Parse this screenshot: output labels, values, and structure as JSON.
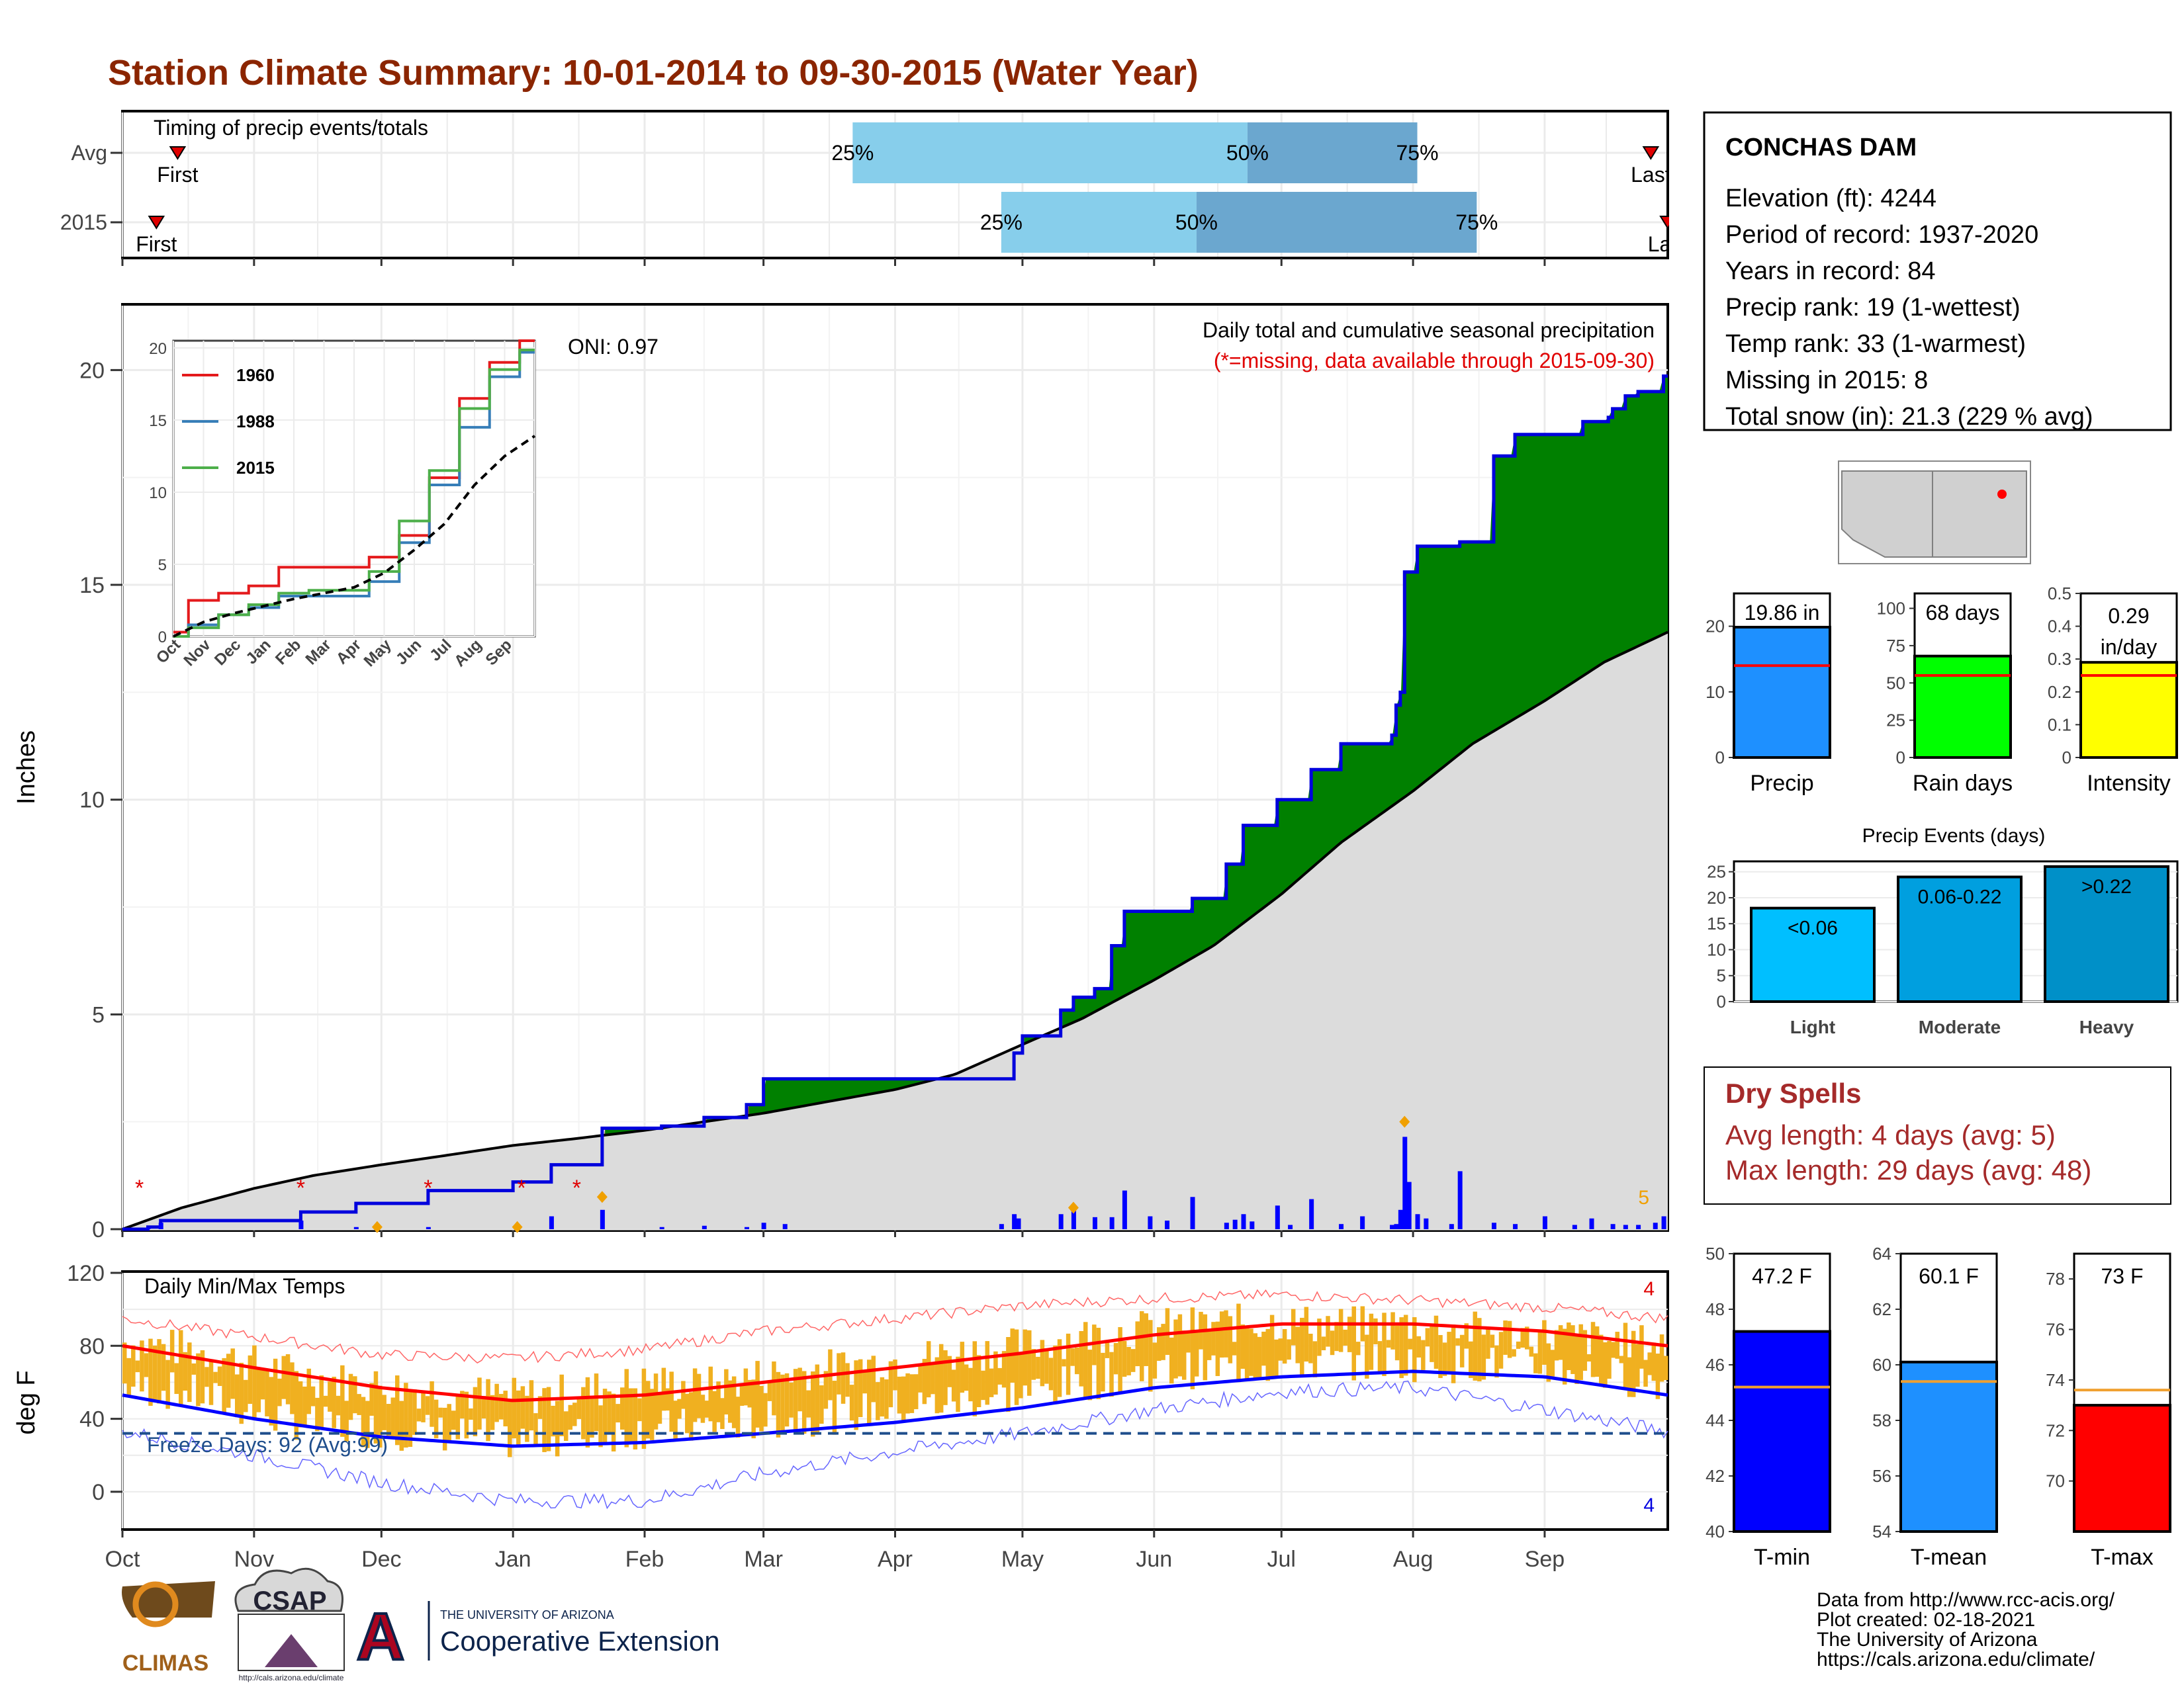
{
  "title": "Station Climate Summary: 10-01-2014 to 09-30-2015 (Water Year)",
  "colors": {
    "title": "#8b2500",
    "deficit": "#7f4f05",
    "surplus": "#008000",
    "avgFill": "#dcdcdc",
    "dailyBar": "#0000ff",
    "light": "#00bfff",
    "moderate": "#009fdf",
    "heavy": "#0090c8",
    "q1": "#87ceeb",
    "q2": "#6ba7cf",
    "tempBar": "#f0b020",
    "tmaxLine": "#ff0000",
    "tminLine": "#0000ff",
    "freeze": "#1f4e8c",
    "drySpells": "#a52a2a",
    "precipBar": "#1e90ff",
    "rainBar": "#00ff00",
    "intensityBar": "#ffff00",
    "tminBar": "#0000ff",
    "tmeanBar": "#1e90ff",
    "tmaxBar": "#ff0000",
    "avgLine": "#ff0000",
    "tempAvgLine": "#f0a030"
  },
  "timing": {
    "label": "Timing of precip events/totals",
    "rows": [
      {
        "name": "Avg",
        "first_label": "First",
        "last_label": "Last",
        "first": "2014-10-14",
        "last": "2015-09-26",
        "q25": "2015-03-22",
        "q50": "2015-06-23",
        "q75": "2015-08-02"
      },
      {
        "name": "2015",
        "first_label": "First",
        "last_label": "Last",
        "first": "2014-10-09",
        "last": "2015-09-30",
        "q25": "2015-04-26",
        "q50": "2015-06-11",
        "q75": "2015-08-16"
      }
    ],
    "pct_labels": [
      "25%",
      "50%",
      "75%"
    ]
  },
  "chart_data": [
    {
      "type": "area",
      "name": "cumulative_precip",
      "ylabel": "Inches",
      "ylim": [
        0,
        21.5
      ],
      "yticks": [
        0,
        5,
        10,
        15,
        20
      ],
      "xlim": [
        "2014-10-01",
        "2015-09-30"
      ],
      "x_ticks": [
        "Oct",
        "Nov",
        "Dec",
        "Jan",
        "Feb",
        "Mar",
        "Apr",
        "May",
        "Jun",
        "Jul",
        "Aug",
        "Sep"
      ],
      "annotation_title": "Daily total and cumulative seasonal precipitation",
      "annotation_missing": "(*=missing, data available through 2015-09-30)",
      "oni": "ONI: 0.97",
      "missing_count": "5",
      "avg_cumulative": {
        "dates": [
          "2014-10-01",
          "2014-10-15",
          "2014-11-01",
          "2014-11-15",
          "2014-12-01",
          "2014-12-15",
          "2015-01-01",
          "2015-01-15",
          "2015-02-01",
          "2015-02-15",
          "2015-03-01",
          "2015-03-15",
          "2015-04-01",
          "2015-04-15",
          "2015-05-01",
          "2015-05-15",
          "2015-06-01",
          "2015-06-15",
          "2015-07-01",
          "2015-07-15",
          "2015-08-01",
          "2015-08-15",
          "2015-09-01",
          "2015-09-15",
          "2015-09-30"
        ],
        "values": [
          0.0,
          0.5,
          0.95,
          1.25,
          1.5,
          1.7,
          1.95,
          2.1,
          2.3,
          2.5,
          2.7,
          2.95,
          3.25,
          3.6,
          4.3,
          4.9,
          5.8,
          6.6,
          7.8,
          9.0,
          10.2,
          11.3,
          12.3,
          13.2,
          13.9
        ]
      },
      "cumulative_2015": {
        "dates": [
          "2014-10-01",
          "2014-10-07",
          "2014-10-10",
          "2014-11-01",
          "2014-11-12",
          "2014-11-25",
          "2014-12-12",
          "2015-01-01",
          "2015-01-10",
          "2015-01-20",
          "2015-01-22",
          "2015-02-05",
          "2015-02-15",
          "2015-02-25",
          "2015-03-01",
          "2015-03-15",
          "2015-04-01",
          "2015-04-15",
          "2015-04-29",
          "2015-05-01",
          "2015-05-10",
          "2015-05-13",
          "2015-05-18",
          "2015-05-22",
          "2015-05-25",
          "2015-06-04",
          "2015-06-10",
          "2015-06-18",
          "2015-06-22",
          "2015-06-30",
          "2015-07-03",
          "2015-07-06",
          "2015-07-08",
          "2015-07-15",
          "2015-07-27",
          "2015-07-28",
          "2015-07-29",
          "2015-07-30",
          "2015-08-02",
          "2015-08-10",
          "2015-08-12",
          "2015-08-20",
          "2015-08-25",
          "2015-09-01",
          "2015-09-10",
          "2015-09-16",
          "2015-09-17",
          "2015-09-20",
          "2015-09-23",
          "2015-09-29",
          "2015-09-30"
        ],
        "values": [
          0.0,
          0.05,
          0.2,
          0.2,
          0.4,
          0.6,
          0.9,
          1.1,
          1.5,
          1.5,
          2.35,
          2.4,
          2.6,
          2.9,
          3.5,
          3.5,
          3.5,
          3.5,
          4.1,
          4.5,
          5.1,
          5.4,
          5.6,
          6.6,
          7.4,
          7.4,
          7.7,
          8.5,
          9.4,
          10.0,
          10.0,
          10.0,
          10.7,
          11.3,
          11.5,
          12.2,
          12.5,
          15.3,
          15.9,
          15.9,
          16.0,
          18.0,
          18.5,
          18.5,
          18.8,
          18.9,
          19.1,
          19.4,
          19.5,
          19.86,
          19.86
        ]
      },
      "daily": {
        "dates": [
          "2014-10-07",
          "2014-10-10",
          "2014-11-12",
          "2014-11-25",
          "2014-12-12",
          "2015-01-10",
          "2015-01-22",
          "2015-02-05",
          "2015-02-15",
          "2015-02-25",
          "2015-03-01",
          "2015-03-06",
          "2015-04-26",
          "2015-04-29",
          "2015-04-30",
          "2015-05-10",
          "2015-05-13",
          "2015-05-18",
          "2015-05-22",
          "2015-05-25",
          "2015-05-31",
          "2015-06-04",
          "2015-06-10",
          "2015-06-18",
          "2015-06-20",
          "2015-06-22",
          "2015-06-24",
          "2015-06-30",
          "2015-07-03",
          "2015-07-08",
          "2015-07-15",
          "2015-07-20",
          "2015-07-27",
          "2015-07-28",
          "2015-07-29",
          "2015-07-30",
          "2015-07-31",
          "2015-08-02",
          "2015-08-04",
          "2015-08-10",
          "2015-08-12",
          "2015-08-20",
          "2015-08-25",
          "2015-09-01",
          "2015-09-08",
          "2015-09-12",
          "2015-09-17",
          "2015-09-20",
          "2015-09-23",
          "2015-09-27",
          "2015-09-29"
        ],
        "values": [
          0.04,
          0.15,
          0.2,
          0.05,
          0.05,
          0.3,
          0.45,
          0.05,
          0.08,
          0.05,
          0.15,
          0.12,
          0.12,
          0.35,
          0.25,
          0.35,
          0.45,
          0.28,
          0.28,
          0.9,
          0.3,
          0.2,
          0.75,
          0.15,
          0.22,
          0.35,
          0.18,
          0.55,
          0.1,
          0.7,
          0.12,
          0.3,
          0.1,
          0.12,
          0.45,
          2.15,
          1.1,
          0.35,
          0.25,
          0.12,
          1.35,
          0.15,
          0.12,
          0.3,
          0.1,
          0.25,
          0.12,
          0.1,
          0.1,
          0.15,
          0.3
        ]
      },
      "missing_markers": [
        "2014-10-05",
        "2014-11-12",
        "2014-12-12",
        "2015-01-03",
        "2015-01-16"
      ],
      "orange_markers": [
        [
          "2014-11-30",
          0.05
        ],
        [
          "2015-01-02",
          0.05
        ],
        [
          "2015-01-22",
          0.75
        ],
        [
          "2015-05-13",
          0.5
        ],
        [
          "2015-07-30",
          2.5
        ]
      ]
    },
    {
      "type": "line",
      "name": "inset_cumulative",
      "x_ticks": [
        "Oct",
        "Nov",
        "Dec",
        "Jan",
        "Feb",
        "Mar",
        "Apr",
        "May",
        "Jun",
        "Jul",
        "Aug",
        "Sep"
      ],
      "yticks": [
        0,
        5,
        10,
        15,
        20
      ],
      "ylim": [
        0,
        20.5
      ],
      "series": [
        {
          "name": "1960",
          "color": "#e41a1c",
          "values": [
            0.3,
            2.5,
            3.0,
            3.5,
            4.8,
            4.8,
            4.8,
            5.5,
            7.0,
            11.0,
            16.5,
            19.0,
            20.5
          ]
        },
        {
          "name": "1988",
          "color": "#377eb8",
          "values": [
            0.0,
            0.8,
            1.5,
            2.0,
            2.8,
            2.8,
            2.8,
            3.8,
            6.5,
            10.5,
            14.5,
            18.0,
            19.7
          ]
        },
        {
          "name": "2015",
          "color": "#4daf4a",
          "values": [
            0.0,
            0.6,
            1.5,
            2.2,
            3.0,
            3.2,
            3.2,
            4.5,
            8.0,
            11.5,
            15.8,
            18.5,
            19.86
          ]
        },
        {
          "name": "",
          "color": "#000000",
          "values": [
            0.0,
            1.0,
            1.6,
            2.1,
            2.6,
            3.0,
            3.4,
            4.4,
            6.0,
            7.8,
            10.5,
            12.5,
            13.9
          ]
        }
      ]
    },
    {
      "type": "bar",
      "name": "daily_temps",
      "title": "Daily Min/Max Temps",
      "ylabel": "deg F",
      "ylim": [
        -20,
        120
      ],
      "yticks": [
        0,
        40,
        80,
        120
      ],
      "freeze_label": "Freeze Days: 92 (Avg:99)",
      "freeze_line": 32,
      "max_missing": "4",
      "min_missing": "4",
      "x_ticks": [
        "Oct",
        "Nov",
        "Dec",
        "Jan",
        "Feb",
        "Mar",
        "Apr",
        "May",
        "Jun",
        "Jul",
        "Aug",
        "Sep"
      ],
      "normal_max": {
        "months": [
          0,
          1,
          2,
          3,
          4,
          5,
          6,
          7,
          8,
          9,
          10,
          11,
          12
        ],
        "values": [
          80,
          68,
          57,
          50,
          53,
          60,
          68,
          76,
          86,
          92,
          92,
          88,
          80
        ]
      },
      "normal_min": {
        "months": [
          0,
          1,
          2,
          3,
          4,
          5,
          6,
          7,
          8,
          9,
          10,
          11,
          12
        ],
        "values": [
          53,
          40,
          30,
          25,
          27,
          32,
          38,
          46,
          57,
          63,
          66,
          63,
          53
        ]
      },
      "record_max": {
        "months": [
          0,
          1,
          2,
          3,
          4,
          5,
          6,
          7,
          8,
          9,
          10,
          11,
          12
        ],
        "values": [
          95,
          85,
          75,
          73,
          78,
          88,
          95,
          102,
          106,
          108,
          105,
          101,
          95
        ]
      },
      "record_min": {
        "months": [
          0,
          1,
          2,
          3,
          4,
          5,
          6,
          7,
          8,
          9,
          10,
          11,
          12
        ],
        "values": [
          33,
          20,
          5,
          -5,
          -5,
          10,
          22,
          32,
          45,
          55,
          57,
          45,
          33
        ]
      },
      "obs_tmax": {
        "months": [
          0,
          0.5,
          1,
          1.5,
          2,
          2.5,
          3,
          3.5,
          4,
          4.5,
          5,
          5.5,
          6,
          6.5,
          7,
          7.5,
          8,
          8.5,
          9,
          9.5,
          10,
          10.5,
          11,
          11.5,
          12
        ],
        "values": [
          82,
          78,
          70,
          62,
          58,
          55,
          52,
          55,
          60,
          58,
          64,
          68,
          72,
          76,
          80,
          86,
          90,
          92,
          93,
          91,
          92,
          88,
          86,
          83,
          80
        ]
      },
      "obs_tmin": {
        "months": [
          0,
          0.5,
          1,
          1.5,
          2,
          2.5,
          3,
          3.5,
          4,
          4.5,
          5,
          5.5,
          6,
          6.5,
          7,
          7.5,
          8,
          8.5,
          9,
          9.5,
          10,
          10.5,
          11,
          11.5,
          12
        ],
        "values": [
          52,
          48,
          38,
          30,
          28,
          26,
          22,
          25,
          28,
          30,
          33,
          36,
          40,
          44,
          48,
          55,
          60,
          62,
          64,
          66,
          65,
          64,
          62,
          58,
          54
        ]
      }
    },
    {
      "type": "bar",
      "name": "precip_summary",
      "panels": [
        {
          "label": "Precip",
          "value": 19.86,
          "value_label": "19.86 in",
          "avg": 14.0,
          "ylim": [
            0,
            25
          ],
          "yticks": [
            0,
            10,
            20
          ]
        },
        {
          "label": "Rain days",
          "value": 68,
          "value_label": "68 days",
          "avg": 55,
          "ylim": [
            0,
            110
          ],
          "yticks": [
            0,
            25,
            50,
            75,
            100
          ]
        },
        {
          "label": "Intensity",
          "value": 0.29,
          "value_label": "0.29 in/day",
          "avg": 0.25,
          "ylim": [
            0,
            0.5
          ],
          "yticks": [
            0.0,
            0.1,
            0.2,
            0.3,
            0.4,
            0.5
          ]
        }
      ]
    },
    {
      "type": "bar",
      "name": "precip_events",
      "title": "Precip Events (days)",
      "categories": [
        "Light",
        "Moderate",
        "Heavy"
      ],
      "bar_labels": [
        "<0.06",
        "0.06-0.22",
        ">0.22"
      ],
      "values": [
        18,
        24,
        26
      ],
      "ylim": [
        0,
        27
      ],
      "yticks": [
        0,
        5,
        10,
        15,
        20,
        25
      ]
    },
    {
      "type": "bar",
      "name": "temp_summary",
      "panels": [
        {
          "label": "T-min",
          "value": 47.2,
          "value_label": "47.2 F",
          "avg": 45.2,
          "ylim": [
            40,
            50
          ],
          "yticks": [
            40,
            42,
            44,
            46,
            48,
            50
          ]
        },
        {
          "label": "T-mean",
          "value": 60.1,
          "value_label": "60.1 F",
          "avg": 59.4,
          "ylim": [
            54,
            64
          ],
          "yticks": [
            54,
            56,
            58,
            60,
            62,
            64
          ]
        },
        {
          "label": "T-max",
          "value": 73,
          "value_label": "73 F",
          "avg": 73.6,
          "ylim": [
            68,
            79
          ],
          "yticks": [
            70,
            72,
            74,
            76,
            78
          ]
        }
      ]
    }
  ],
  "station": {
    "name": "CONCHAS DAM",
    "lines": [
      "Elevation (ft): 4244",
      "Period of record: 1937-2020",
      "Years in record: 84",
      "Precip rank: 19 (1-wettest)",
      "Temp rank: 33 (1-warmest)",
      "Missing in 2015: 8",
      "Total snow (in): 21.3 (229 % avg)"
    ]
  },
  "dry_spells": {
    "title": "Dry Spells",
    "avg_line": "Avg length: 4 days (avg: 5)",
    "max_line": "Max length: 29 days (avg: 48)"
  },
  "footer": {
    "lines": [
      "Data from http://www.rcc-acis.org/",
      "Plot created: 02-18-2021",
      "The University of Arizona",
      "https://cals.arizona.edu/climate/"
    ],
    "logos": {
      "climas": "CLIMAS",
      "csap": "CSAP",
      "csap_url": "http://cals.arizona.edu/climate",
      "ua_top": "THE UNIVERSITY OF ARIZONA",
      "ua_bottom": "Cooperative Extension"
    }
  }
}
